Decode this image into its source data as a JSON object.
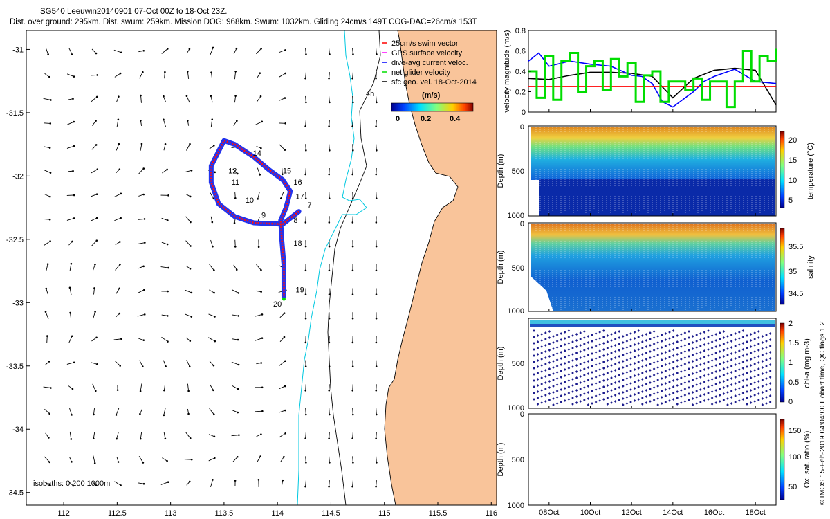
{
  "header": {
    "line1": "SG540 Leeuwin20140901 07-Oct 00Z to 18-Oct 23Z.",
    "line2": "Dist. over ground: 295km. Dist. swum: 259km. Mission DOG: 968km. Swum: 1032km. Gliding 24cm/s 149T COG-DAC=26cm/s 153T"
  },
  "map": {
    "x_ticks": [
      "112",
      "112.5",
      "113",
      "113.5",
      "114",
      "114.5",
      "115",
      "115.5",
      "116"
    ],
    "y_ticks": [
      "-31",
      "-31.5",
      "-32",
      "-32.5",
      "-33",
      "-33.5",
      "-34",
      "-34.5"
    ],
    "xlim": [
      111.65,
      116.05
    ],
    "ylim": [
      -34.6,
      -30.85
    ],
    "land_color": "#f9c49a",
    "legend": [
      {
        "label": "25cm/s swim vector",
        "color": "#ff0000"
      },
      {
        "label": "GPS surface velocity",
        "color": "#ff00ff"
      },
      {
        "label": "dive-avg current veloc.",
        "color": "#0000ff"
      },
      {
        "label": "net glider velocity",
        "color": "#00dd00"
      },
      {
        "label": "sfc geo. vel. 18-Oct-2014",
        "color": "#000000"
      }
    ],
    "colorbar": {
      "unit": "(m/s)",
      "ticks": [
        "0",
        "0.2",
        "0.4"
      ]
    },
    "isobaths_label": "isobaths: 0   200  1000m",
    "track_label": "4h",
    "day_labels": [
      {
        "text": "7",
        "lon": 114.28,
        "lat": -32.25
      },
      {
        "text": "8",
        "lon": 114.15,
        "lat": -32.37
      },
      {
        "text": "9",
        "lon": 113.85,
        "lat": -32.33
      },
      {
        "text": "10",
        "lon": 113.7,
        "lat": -32.21
      },
      {
        "text": "11",
        "lon": 113.57,
        "lat": -32.07
      },
      {
        "text": "12",
        "lon": 113.54,
        "lat": -31.98
      },
      {
        "text": "14",
        "lon": 113.77,
        "lat": -31.84
      },
      {
        "text": "15",
        "lon": 114.05,
        "lat": -31.98
      },
      {
        "text": "16",
        "lon": 114.15,
        "lat": -32.07
      },
      {
        "text": "17",
        "lon": 114.17,
        "lat": -32.18
      },
      {
        "text": "18",
        "lon": 114.15,
        "lat": -32.55
      },
      {
        "text": "19",
        "lon": 114.17,
        "lat": -32.92
      },
      {
        "text": "20",
        "lon": 113.96,
        "lat": -33.03
      }
    ]
  },
  "credit": "© IMOS 15-Feb-2019 04:04:00 Hobart time, QC flags 1  2",
  "time_axis": {
    "ticks": [
      "08Oct",
      "10Oct",
      "12Oct",
      "14Oct",
      "16Oct",
      "18Oct"
    ]
  },
  "panels": [
    {
      "ylabel": "velocity magnitude (m/s)",
      "y_ticks": [
        "0",
        "0.2",
        "0.4",
        "0.6",
        "0.8"
      ]
    },
    {
      "ylabel": "Depth (m)",
      "y_ticks": [
        "0",
        "500",
        "1000"
      ],
      "cb_label": "temperature (°C)",
      "cb_ticks": [
        "5",
        "10",
        "15",
        "20"
      ]
    },
    {
      "ylabel": "Depth (m)",
      "y_ticks": [
        "0",
        "500",
        "1000"
      ],
      "cb_label": "salinity",
      "cb_ticks": [
        "34.5",
        "35",
        "35.5"
      ]
    },
    {
      "ylabel": "Depth (m)",
      "y_ticks": [
        "500",
        "1000"
      ],
      "cb_label": "chl-a (mg m-3)",
      "cb_ticks": [
        "0",
        "0.5",
        "1",
        "1.5",
        "2"
      ]
    },
    {
      "ylabel": "Depth (m)",
      "y_ticks": [
        "0",
        "500",
        "1000"
      ],
      "cb_label": "Ox. sat. ratio (%)",
      "cb_ticks": [
        "50",
        "100",
        "150"
      ]
    }
  ],
  "chart_data": [
    {
      "type": "scatter",
      "description_kind": "map",
      "xlim": [
        111.65,
        116.05
      ],
      "ylim": [
        -34.6,
        -30.85
      ],
      "track": [
        [
          114.2,
          -32.28
        ],
        [
          114.05,
          -32.38
        ],
        [
          113.78,
          -32.37
        ],
        [
          113.6,
          -32.32
        ],
        [
          113.45,
          -32.22
        ],
        [
          113.38,
          -32.05
        ],
        [
          113.38,
          -31.92
        ],
        [
          113.5,
          -31.72
        ],
        [
          113.6,
          -31.75
        ],
        [
          113.78,
          -31.85
        ],
        [
          113.92,
          -31.95
        ],
        [
          114.05,
          -32.03
        ],
        [
          114.12,
          -32.12
        ],
        [
          114.08,
          -32.25
        ],
        [
          114.03,
          -32.35
        ],
        [
          114.04,
          -32.5
        ],
        [
          114.06,
          -32.7
        ],
        [
          114.06,
          -32.88
        ],
        [
          114.06,
          -32.95
        ]
      ]
    },
    {
      "type": "line",
      "x_unit": "day of October",
      "xlim": [
        7,
        19
      ],
      "ylim": [
        0,
        0.8
      ],
      "series": [
        {
          "color": "#000000",
          "x": [
            7,
            8,
            9,
            10,
            11,
            12,
            13,
            14,
            15,
            16,
            17,
            18,
            19
          ],
          "values": [
            0.33,
            0.32,
            0.36,
            0.39,
            0.39,
            0.38,
            0.35,
            0.14,
            0.33,
            0.41,
            0.43,
            0.41,
            0.07
          ]
        },
        {
          "color": "#0000ff",
          "x": [
            7,
            7.5,
            8,
            9,
            10,
            11,
            12,
            12.5,
            13,
            13.5,
            14,
            15,
            15.5,
            16,
            17,
            18,
            19
          ],
          "values": [
            0.5,
            0.58,
            0.45,
            0.5,
            0.47,
            0.45,
            0.36,
            0.35,
            0.28,
            0.1,
            0.05,
            0.2,
            0.3,
            0.35,
            0.42,
            0.3,
            0.28
          ]
        },
        {
          "color": "#ff0000",
          "x": [
            7,
            19
          ],
          "values": [
            0.25,
            0.25
          ]
        },
        {
          "color": "#00dd00",
          "x": [
            7,
            7.4,
            7.8,
            8.2,
            8.6,
            9,
            9.4,
            9.8,
            10.2,
            10.6,
            11,
            11.4,
            11.8,
            12.2,
            12.6,
            13,
            13.4,
            13.8,
            14.2,
            14.6,
            15,
            15.4,
            15.8,
            16.2,
            16.6,
            17,
            17.4,
            17.8,
            18.2,
            18.6,
            19
          ],
          "values": [
            0.4,
            0.14,
            0.55,
            0.12,
            0.5,
            0.58,
            0.2,
            0.45,
            0.5,
            0.22,
            0.52,
            0.35,
            0.48,
            0.1,
            0.36,
            0.4,
            0.1,
            0.3,
            0.3,
            0.22,
            0.33,
            0.12,
            0.3,
            0.3,
            0.05,
            0.3,
            0.6,
            0.3,
            0.55,
            0.5,
            0.62
          ]
        }
      ]
    }
  ]
}
